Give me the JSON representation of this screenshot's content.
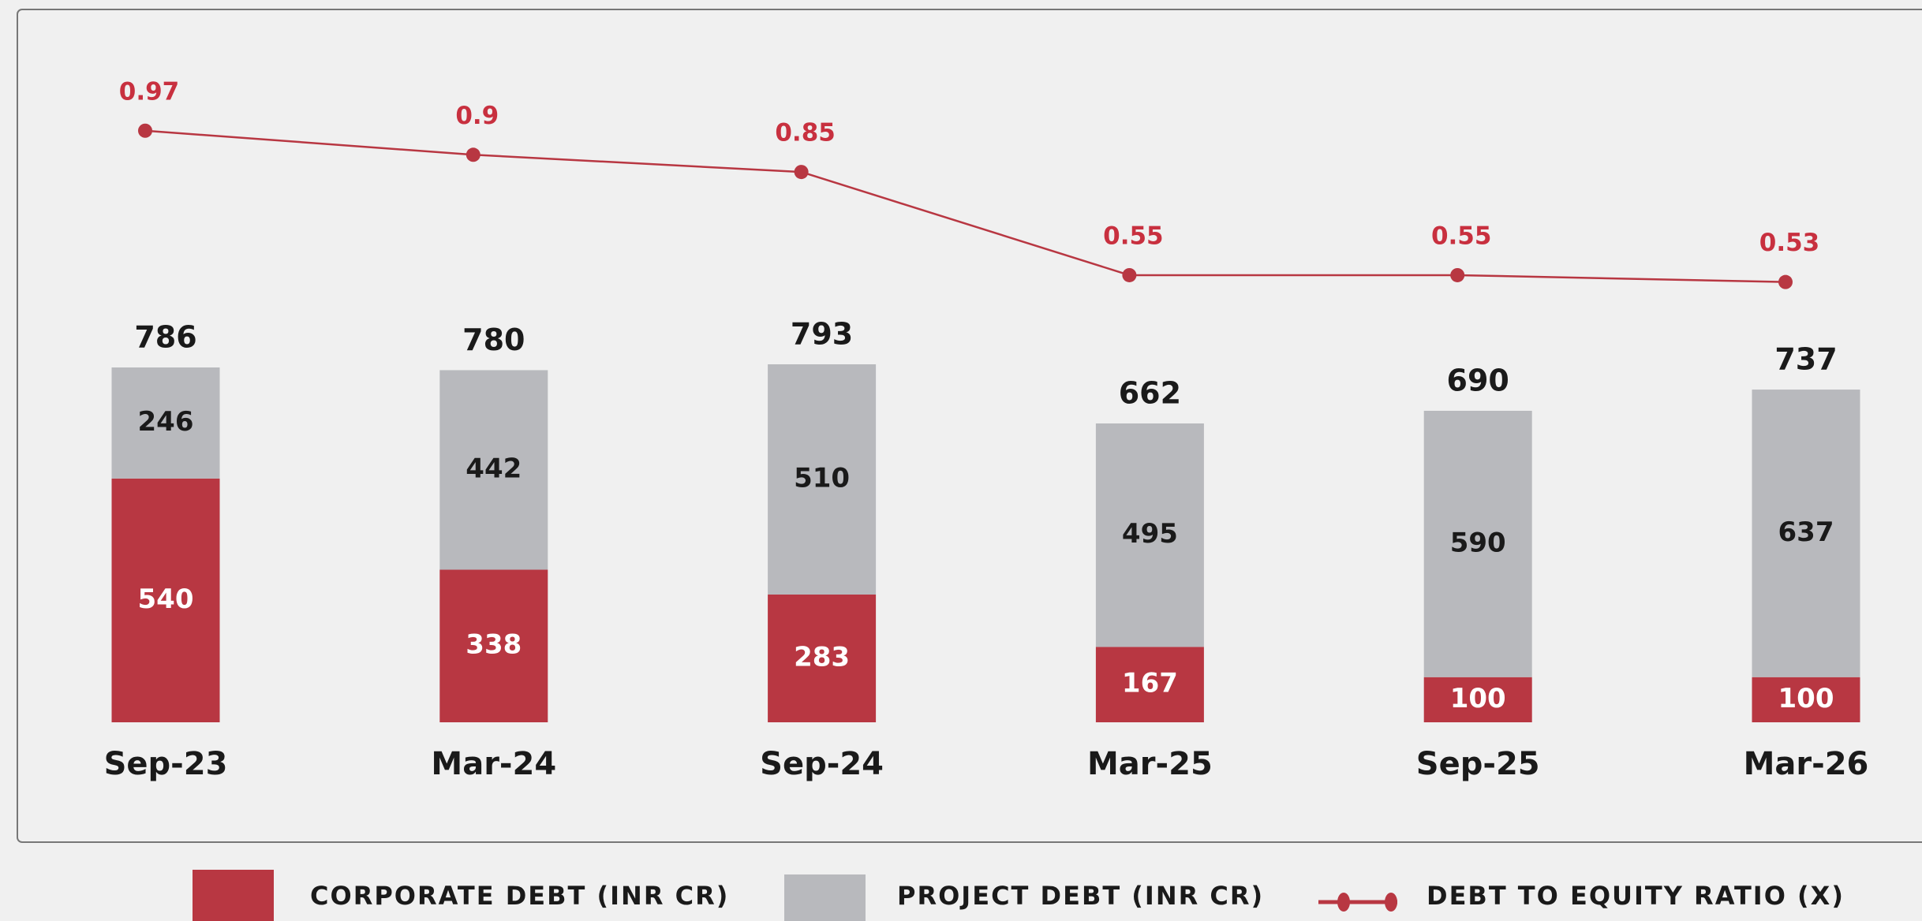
{
  "chart_data": {
    "type": "bar",
    "categories": [
      "Sep-23",
      "Mar-24",
      "Sep-24",
      "Mar-25",
      "Sep-25",
      "Mar-26"
    ],
    "series": [
      {
        "name": "CORPORATE DEBT (INR CR)",
        "color": "#b83742",
        "values": [
          540,
          338,
          283,
          167,
          100,
          100
        ]
      },
      {
        "name": "PROJECT DEBT (INR CR)",
        "color": "#b8b9bd",
        "values": [
          246,
          442,
          510,
          495,
          590,
          637
        ]
      },
      {
        "name": "DEBT TO EQUITY RATIO (X)",
        "type": "line",
        "axis": "y2",
        "color": "#b83742",
        "values": [
          0.97,
          0.9,
          0.85,
          0.55,
          0.55,
          0.53
        ]
      }
    ],
    "totals": [
      786,
      780,
      793,
      662,
      690,
      737
    ],
    "ylim": [
      0,
      1600
    ],
    "y2lim": [
      -0.75,
      1.35
    ],
    "stacked": true,
    "grid": false,
    "legend": "bottom"
  }
}
